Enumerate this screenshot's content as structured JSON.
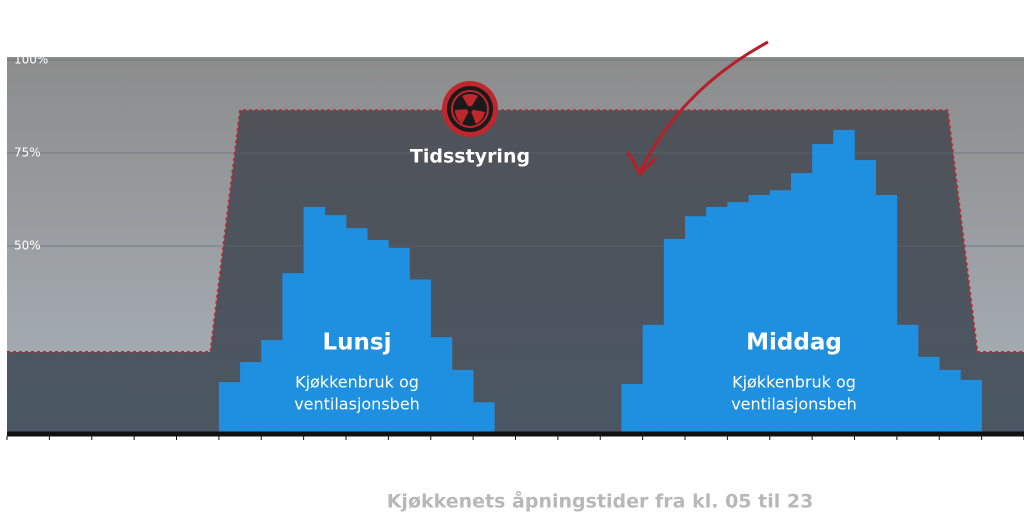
{
  "chart_data": {
    "type": "histogram",
    "footer": "Kjøkkenets åpningstider fra kl. 05 til 23",
    "xlim": [
      0,
      48
    ],
    "ylim": [
      0,
      100
    ],
    "yticks": [
      {
        "value": 100,
        "label": "100%"
      },
      {
        "value": 75,
        "label": "75%"
      },
      {
        "value": 50,
        "label": "50%"
      }
    ],
    "color": "#1f8fe0",
    "values": [
      0,
      0,
      0,
      0,
      0,
      0,
      0,
      0,
      0,
      0,
      13.4,
      18.8,
      24.7,
      42.7,
      60.5,
      58.3,
      54.8,
      51.6,
      49.5,
      41,
      25.5,
      16.7,
      8,
      0,
      0,
      0,
      0,
      0,
      0,
      12.9,
      28.8,
      51.9,
      58,
      60.5,
      61.8,
      63.7,
      65,
      69.6,
      77.4,
      81.2,
      73.1,
      63.7,
      28.8,
      20.2,
      16.7,
      14,
      0,
      0
    ],
    "timer": {
      "name": "Tidsstyring",
      "color": "#c0272d",
      "x": [
        0,
        9.6,
        11,
        44.4,
        45.8,
        48
      ],
      "values": [
        21.5,
        21.5,
        86.5,
        86.5,
        21.5,
        21.5
      ]
    },
    "annotations": [
      {
        "title": "Lunsj",
        "text": [
          "Kjøkkenbruk og",
          "ventilasjonsbeh"
        ]
      },
      {
        "title": "Middag",
        "text": [
          "Kjøkkenbruk og",
          "ventilasjonsbeh"
        ]
      }
    ]
  }
}
